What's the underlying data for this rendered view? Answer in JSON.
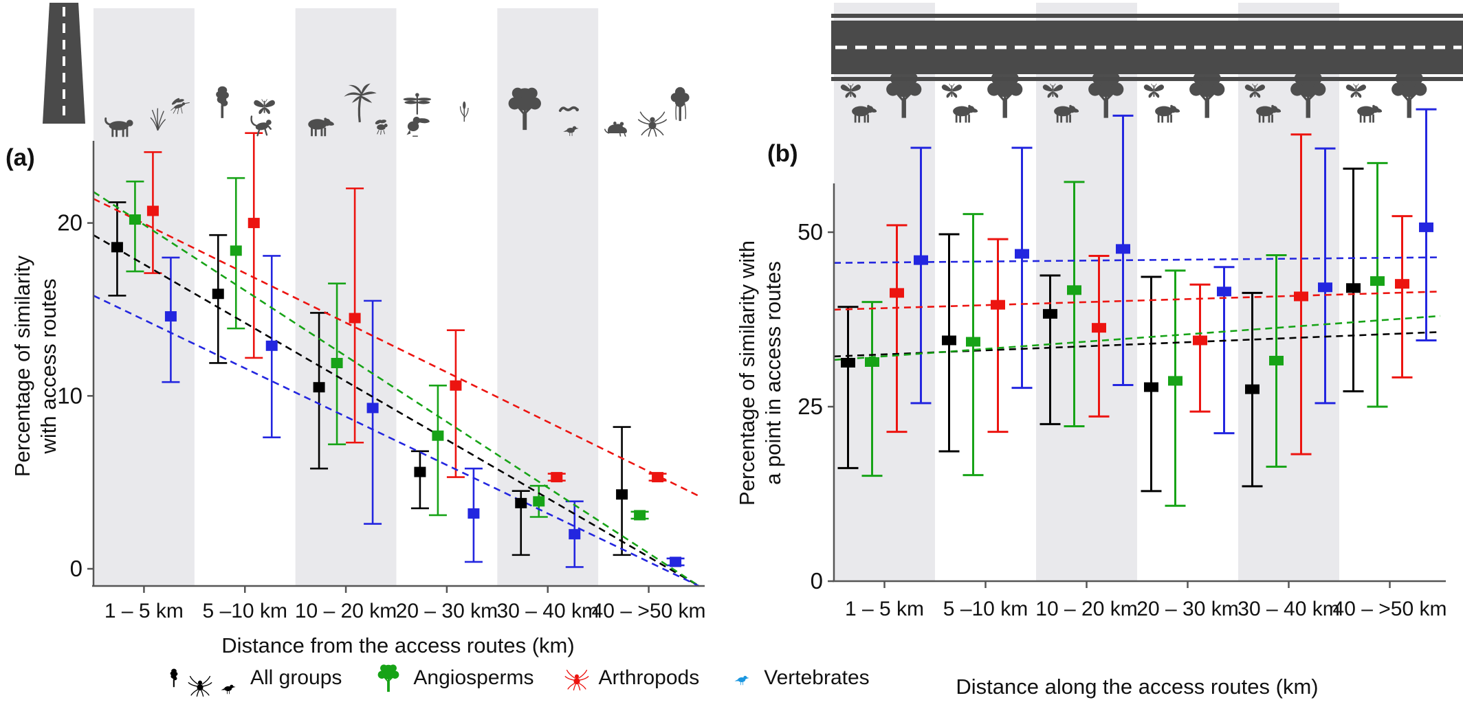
{
  "figure": {
    "panel_a_label": "(a)",
    "panel_b_label": "(b)",
    "background_color": "#ffffff",
    "band_fill_color": "#e9e9ec",
    "silhouette_color": "#4e4e4e",
    "road_color": "#4a4a4a"
  },
  "legend": {
    "items": [
      {
        "label": "All groups",
        "color": "#000000",
        "icons": [
          "talltree-icon",
          "spider-icon",
          "bird-icon"
        ]
      },
      {
        "label": "Angiosperms",
        "color": "#17a317",
        "icons": [
          "roundtree-icon"
        ]
      },
      {
        "label": "Arthropods",
        "color": "#ec1410",
        "icons": [
          "spider-icon"
        ]
      },
      {
        "label": "Vertebrates",
        "color": "#1b97e0",
        "icons": [
          "bird-icon"
        ]
      }
    ]
  },
  "chart_data": [
    {
      "id": "a",
      "type": "scatter",
      "title": "(a)",
      "ylabel_lines": [
        "Percentage of similarity",
        "with access routes"
      ],
      "xlabel": "Distance from the access routes (km)",
      "categories": [
        "1 – 5 km",
        "5 –10 km",
        "10 – 20 km",
        "20 – 30 km",
        "30 – 40 km",
        "40 – >50 km"
      ],
      "yticks": [
        0,
        10,
        20
      ],
      "ylim": [
        0,
        25
      ],
      "grid": "alternating gray vertical bands on categories 1,3,5",
      "legend_position": "below figure",
      "series": [
        {
          "name": "All groups",
          "color": "#000000",
          "values": [
            18.6,
            15.9,
            10.5,
            5.6,
            3.8,
            4.3
          ],
          "err_lo": [
            15.8,
            11.9,
            5.8,
            3.5,
            0.8,
            0.8
          ],
          "err_hi": [
            21.2,
            19.3,
            14.8,
            6.8,
            4.5,
            8.2
          ],
          "trend": {
            "start": 19.3,
            "end": -1.0
          }
        },
        {
          "name": "Angiosperms",
          "color": "#17a317",
          "values": [
            20.2,
            18.4,
            11.9,
            7.7,
            3.9,
            3.1
          ],
          "err_lo": [
            17.2,
            13.9,
            7.2,
            3.1,
            3.0,
            2.9
          ],
          "err_hi": [
            22.4,
            22.6,
            16.5,
            10.6,
            4.8,
            3.3
          ],
          "trend": {
            "start": 21.8,
            "end": -1.0
          }
        },
        {
          "name": "Arthropods",
          "color": "#ec1410",
          "values": [
            20.7,
            20.0,
            14.5,
            10.6,
            5.3,
            5.3
          ],
          "err_lo": [
            17.1,
            12.2,
            7.3,
            5.3,
            5.1,
            5.1
          ],
          "err_hi": [
            24.1,
            25.2,
            22.0,
            13.8,
            5.5,
            5.5
          ],
          "trend": {
            "start": 21.4,
            "end": 4.2
          }
        },
        {
          "name": "Vertebrates",
          "color": "#2326df",
          "values": [
            14.6,
            12.9,
            9.3,
            3.2,
            2.0,
            0.4
          ],
          "err_lo": [
            10.8,
            7.6,
            2.6,
            0.4,
            0.1,
            0.2
          ],
          "err_hi": [
            18.0,
            18.1,
            15.5,
            5.8,
            3.9,
            0.6
          ],
          "trend": {
            "start": 15.8,
            "end": -1.0
          }
        }
      ],
      "band_icons": [
        [
          "jaguar",
          "grass",
          "mosquito"
        ],
        [
          "talltree",
          "butterfly",
          "monkey"
        ],
        [
          "tapir",
          "palm",
          "bee"
        ],
        [
          "dragonfly",
          "toucan",
          "reed"
        ],
        [
          "roundtree",
          "caterpillar",
          "bird"
        ],
        [
          "frog",
          "spider",
          "vinetree"
        ]
      ],
      "decoration": "vertical road with dashed center line at top left"
    },
    {
      "id": "b",
      "type": "scatter",
      "title": "(b)",
      "ylabel_lines": [
        "Percentage of similarity with",
        "a point in access routes"
      ],
      "xlabel": "Distance along the access routes (km)",
      "categories": [
        "1 – 5 km",
        "5 –10 km",
        "10 – 20 km",
        "20 – 30 km",
        "30 – 40 km",
        "40 – >50 km"
      ],
      "yticks": [
        0,
        25,
        50
      ],
      "ylim": [
        0,
        57
      ],
      "grid": "alternating gray vertical bands on categories 1,3,5",
      "series": [
        {
          "name": "All groups",
          "color": "#000000",
          "values": [
            31.3,
            34.5,
            38.3,
            27.8,
            27.5,
            42.0
          ],
          "err_lo": [
            16.2,
            18.6,
            22.5,
            12.9,
            13.6,
            27.2
          ],
          "err_hi": [
            39.3,
            49.7,
            43.8,
            43.6,
            41.3,
            59.1
          ],
          "trend": {
            "start": 32.2,
            "end": 35.7
          }
        },
        {
          "name": "Angiosperms",
          "color": "#17a317",
          "values": [
            31.4,
            34.3,
            41.7,
            28.7,
            31.6,
            43.0
          ],
          "err_lo": [
            15.1,
            15.2,
            22.2,
            10.8,
            16.4,
            25.0
          ],
          "err_hi": [
            40.0,
            52.6,
            57.2,
            44.5,
            46.7,
            59.9
          ],
          "trend": {
            "start": 31.7,
            "end": 38.0
          }
        },
        {
          "name": "Arthropods",
          "color": "#ec1410",
          "values": [
            41.3,
            39.6,
            36.3,
            34.5,
            40.8,
            42.6
          ],
          "err_lo": [
            21.4,
            21.4,
            23.6,
            24.3,
            18.2,
            29.2
          ],
          "err_hi": [
            51.0,
            49.0,
            46.6,
            42.5,
            64.0,
            52.3
          ],
          "trend": {
            "start": 38.9,
            "end": 41.5
          }
        },
        {
          "name": "Vertebrates",
          "color": "#2326df",
          "values": [
            46.0,
            46.9,
            47.6,
            41.5,
            42.1,
            50.7
          ],
          "err_lo": [
            25.5,
            27.7,
            28.1,
            21.2,
            25.5,
            34.5
          ],
          "err_hi": [
            62.1,
            62.1,
            66.7,
            45.0,
            62.0,
            67.6
          ],
          "trend": {
            "start": 45.6,
            "end": 46.4
          }
        }
      ],
      "band_icons": [
        [
          "butterfly",
          "tapir",
          "roundtree"
        ],
        [
          "butterfly",
          "tapir",
          "roundtree"
        ],
        [
          "butterfly",
          "tapir",
          "roundtree"
        ],
        [
          "butterfly",
          "tapir",
          "roundtree"
        ],
        [
          "butterfly",
          "tapir",
          "roundtree"
        ],
        [
          "butterfly",
          "tapir",
          "roundtree"
        ]
      ],
      "decoration": "horizontal road with dashed center line across the top"
    }
  ]
}
